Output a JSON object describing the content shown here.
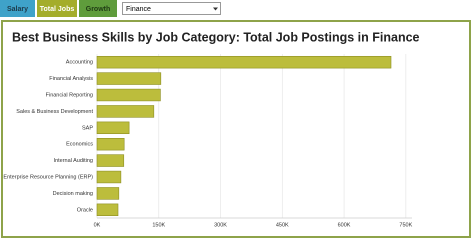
{
  "tabs": [
    "Salary",
    "Total Jobs",
    "Growth"
  ],
  "dropdown": {
    "selected": "Finance"
  },
  "chart_data": {
    "type": "hbar",
    "title": "Best Business Skills by Job Category: Total Job Postings in Finance",
    "categories": [
      "Accounting",
      "Financial Analysis",
      "Financial Reporting",
      "Sales & Business Development",
      "SAP",
      "Economics",
      "Internal Auditing",
      "Enterprise Resource Planning (ERP)",
      "Decision making",
      "Oracle"
    ],
    "values": [
      714000,
      155000,
      154000,
      138000,
      78000,
      66000,
      65000,
      58000,
      53000,
      51000
    ],
    "color": "#bcbd3c",
    "xlim": [
      0,
      765000
    ],
    "xticks": [
      {
        "value": 0,
        "label": "0K"
      },
      {
        "value": 150000,
        "label": "150K"
      },
      {
        "value": 300000,
        "label": "300K"
      },
      {
        "value": 450000,
        "label": "450K"
      },
      {
        "value": 600000,
        "label": "600K"
      },
      {
        "value": 750000,
        "label": "750K"
      }
    ],
    "grid": true
  }
}
